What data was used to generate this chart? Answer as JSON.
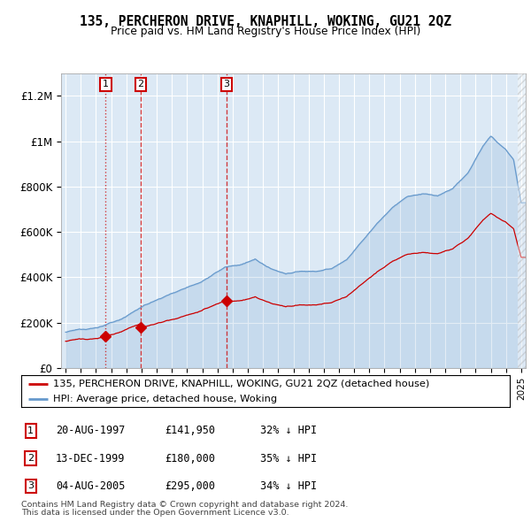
{
  "title": "135, PERCHERON DRIVE, KNAPHILL, WOKING, GU21 2QZ",
  "subtitle": "Price paid vs. HM Land Registry's House Price Index (HPI)",
  "legend_label_red": "135, PERCHERON DRIVE, KNAPHILL, WOKING, GU21 2QZ (detached house)",
  "legend_label_blue": "HPI: Average price, detached house, Woking",
  "footer1": "Contains HM Land Registry data © Crown copyright and database right 2024.",
  "footer2": "This data is licensed under the Open Government Licence v3.0.",
  "sales": [
    {
      "num": 1,
      "date": "20-AUG-1997",
      "price": 141950,
      "pct": "32%",
      "dir": "↓"
    },
    {
      "num": 2,
      "date": "13-DEC-1999",
      "price": 180000,
      "pct": "35%",
      "dir": "↓"
    },
    {
      "num": 3,
      "date": "04-AUG-2005",
      "price": 295000,
      "pct": "34%",
      "dir": "↓"
    }
  ],
  "sale_dates_decimal": [
    1997.633,
    1999.948,
    2005.589
  ],
  "sale_prices": [
    141950,
    180000,
    295000
  ],
  "ylim": [
    0,
    1300000
  ],
  "xlim_start": 1994.7,
  "xlim_end": 2025.3,
  "bg_color": "#dce9f5",
  "red_color": "#cc0000",
  "blue_color": "#6699cc",
  "grid_color": "#ffffff"
}
